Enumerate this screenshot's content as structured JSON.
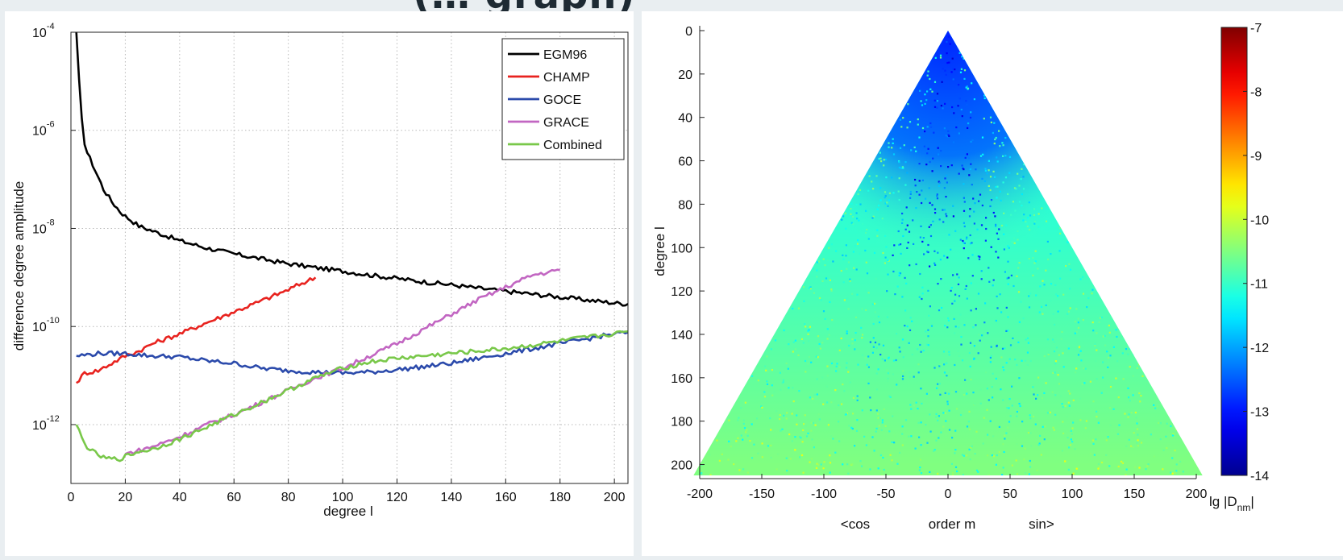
{
  "page_title": "(… graph)",
  "chart_data": [
    {
      "type": "line",
      "xlabel": "degree l",
      "ylabel": "difference degree amplitude",
      "xlim": [
        0,
        205
      ],
      "ylim_log10": [
        -13.2,
        -4
      ],
      "yscale": "log",
      "grid": true,
      "legend_position": "top-right",
      "x_ticks": [
        "0",
        "20",
        "40",
        "60",
        "80",
        "100",
        "120",
        "140",
        "160",
        "180",
        "200"
      ],
      "y_ticks": [
        {
          "base": "10",
          "exp": "-4",
          "log10": -4
        },
        {
          "base": "10",
          "exp": "-6",
          "log10": -6
        },
        {
          "base": "10",
          "exp": "-8",
          "log10": -8
        },
        {
          "base": "10",
          "exp": "-10",
          "log10": -10
        },
        {
          "base": "10",
          "exp": "-12",
          "log10": -12
        }
      ],
      "series": [
        {
          "name": "EGM96",
          "color": "#000000",
          "x": [
            2,
            3,
            4,
            5,
            6,
            8,
            10,
            12,
            15,
            18,
            20,
            25,
            30,
            40,
            50,
            60,
            70,
            80,
            90,
            100,
            110,
            120,
            130,
            140,
            150,
            160,
            170,
            180,
            190,
            200,
            205
          ],
          "log10_y": [
            -4.0,
            -5.0,
            -5.8,
            -6.25,
            -6.45,
            -6.7,
            -6.95,
            -7.2,
            -7.45,
            -7.65,
            -7.75,
            -7.95,
            -8.05,
            -8.25,
            -8.4,
            -8.52,
            -8.62,
            -8.72,
            -8.8,
            -8.87,
            -8.95,
            -9.02,
            -9.09,
            -9.15,
            -9.22,
            -9.28,
            -9.34,
            -9.4,
            -9.46,
            -9.52,
            -9.54
          ]
        },
        {
          "name": "CHAMP",
          "color": "#e8231f",
          "x": [
            2,
            5,
            10,
            15,
            20,
            25,
            30,
            40,
            50,
            60,
            70,
            80,
            85,
            90
          ],
          "log10_y": [
            -11.15,
            -10.95,
            -10.9,
            -10.75,
            -10.6,
            -10.5,
            -10.35,
            -10.15,
            -9.92,
            -9.7,
            -9.48,
            -9.25,
            -9.12,
            -9.0
          ]
        },
        {
          "name": "GOCE",
          "color": "#2b4aab",
          "x": [
            2,
            10,
            20,
            30,
            40,
            50,
            60,
            70,
            80,
            90,
            100,
            110,
            120,
            130,
            140,
            150,
            160,
            170,
            180,
            190,
            200,
            205
          ],
          "log10_y": [
            -10.6,
            -10.55,
            -10.55,
            -10.6,
            -10.62,
            -10.7,
            -10.75,
            -10.85,
            -10.9,
            -10.93,
            -10.95,
            -10.93,
            -10.88,
            -10.82,
            -10.75,
            -10.65,
            -10.55,
            -10.45,
            -10.35,
            -10.25,
            -10.15,
            -10.12
          ]
        },
        {
          "name": "GRACE",
          "color": "#c266c2",
          "x": [
            20,
            30,
            40,
            50,
            60,
            70,
            80,
            90,
            100,
            110,
            120,
            130,
            140,
            150,
            160,
            170,
            180
          ],
          "log10_y": [
            -12.6,
            -12.45,
            -12.25,
            -12.0,
            -11.8,
            -11.55,
            -11.3,
            -11.05,
            -10.85,
            -10.6,
            -10.35,
            -10.05,
            -9.75,
            -9.45,
            -9.2,
            -8.95,
            -8.85
          ]
        },
        {
          "name": "Combined",
          "color": "#79c84a",
          "x": [
            2,
            5,
            8,
            12,
            15,
            18,
            20,
            25,
            30,
            40,
            50,
            60,
            70,
            80,
            90,
            100,
            110,
            120,
            130,
            140,
            150,
            160,
            170,
            180,
            190,
            200,
            205
          ],
          "log10_y": [
            -12.0,
            -12.4,
            -12.55,
            -12.68,
            -12.7,
            -12.7,
            -12.65,
            -12.55,
            -12.5,
            -12.3,
            -12.05,
            -11.8,
            -11.55,
            -11.3,
            -11.05,
            -10.85,
            -10.72,
            -10.65,
            -10.6,
            -10.55,
            -10.5,
            -10.45,
            -10.38,
            -10.3,
            -10.22,
            -10.15,
            -10.1
          ]
        }
      ]
    },
    {
      "type": "heatmap",
      "xlabel": "order m",
      "xlabel_left": "<cos",
      "xlabel_right": "sin>",
      "ylabel": "degree l",
      "xlim": [
        -200,
        200
      ],
      "ylim": [
        0,
        205
      ],
      "x_ticks": [
        "-200",
        "-150",
        "-100",
        "-50",
        "0",
        "50",
        "100",
        "150",
        "200"
      ],
      "y_ticks": [
        "0",
        "20",
        "40",
        "60",
        "80",
        "100",
        "120",
        "140",
        "160",
        "180",
        "200"
      ],
      "colorbar": {
        "label_prefix": "lg |D",
        "label_subscript": "nm",
        "label_suffix": "|",
        "ticks": [
          "-7",
          "-8",
          "-9",
          "-10",
          "-11",
          "-12",
          "-13",
          "-14"
        ],
        "range": [
          -14,
          -7
        ]
      },
      "value_profile": {
        "description_of_values": "lg|D_nm| by degree l: low degrees near order 0 about -12.8, rising toward about -10.5 at high degrees",
        "degrees": [
          0,
          20,
          40,
          60,
          80,
          100,
          120,
          140,
          160,
          180,
          200
        ],
        "center_values": [
          -12.9,
          -12.9,
          -12.7,
          -12.6,
          -12.5,
          -12.3,
          -11.9,
          -11.5,
          -11.2,
          -11.0,
          -10.8
        ],
        "edge_values": [
          -11.3,
          -11.3,
          -11.3,
          -11.2,
          -11.1,
          -11.0,
          -10.9,
          -10.8,
          -10.7,
          -10.6,
          -10.5
        ]
      }
    }
  ]
}
